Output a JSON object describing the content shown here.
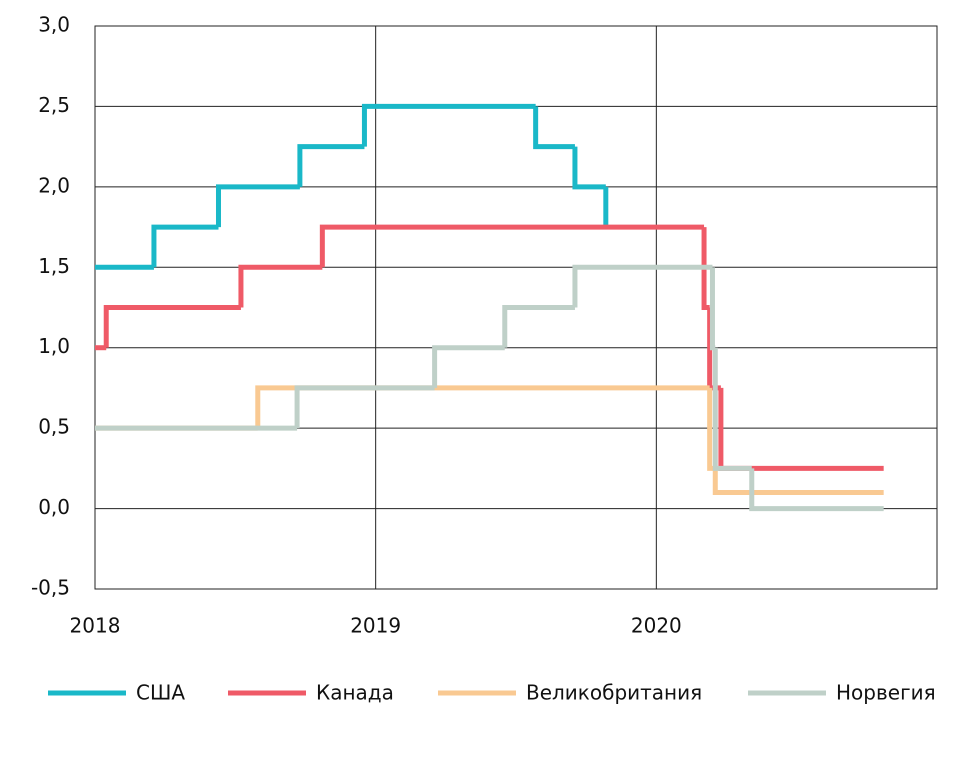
{
  "chart_data": {
    "type": "line",
    "drawstyle": "steps-post",
    "xlim": [
      2018,
      2021
    ],
    "xticks": [
      2018,
      2019,
      2020
    ],
    "ylim": [
      -0.5,
      3.0
    ],
    "yticks": [
      {
        "value": -0.5,
        "label": "-0,5"
      },
      {
        "value": 0,
        "label": "0,0"
      },
      {
        "value": 0.5,
        "label": "0,5"
      },
      {
        "value": 1,
        "label": "1,0"
      },
      {
        "value": 1.5,
        "label": "1,5"
      },
      {
        "value": 2,
        "label": "2,0"
      },
      {
        "value": 2.5,
        "label": "2,5"
      },
      {
        "value": 3,
        "label": "3,0"
      }
    ],
    "grid": true,
    "legend": "bottom",
    "series": [
      {
        "name": "США",
        "color": "#1ab8c8",
        "x": [
          2018,
          2018.21,
          2018.44,
          2018.73,
          2018.96,
          2019.57,
          2019.71,
          2019.82
        ],
        "values": [
          1.5,
          1.75,
          2.0,
          2.25,
          2.5,
          2.25,
          2.0,
          1.75
        ]
      },
      {
        "name": "Канада",
        "color": "#ef5a67",
        "x": [
          2018,
          2018.04,
          2018.52,
          2018.81,
          2020.17,
          2020.19,
          2020.23,
          2020.81
        ],
        "values": [
          1.0,
          1.25,
          1.5,
          1.75,
          1.25,
          0.75,
          0.25,
          0.25
        ]
      },
      {
        "name": "Великобритания",
        "color": "#f9c992",
        "x": [
          2018,
          2018.58,
          2020.19,
          2020.21,
          2020.81
        ],
        "values": [
          0.5,
          0.75,
          0.25,
          0.1,
          0.1
        ]
      },
      {
        "name": "Норвегия",
        "color": "#bfd0c8",
        "x": [
          2018,
          2018.72,
          2019.21,
          2019.46,
          2019.71,
          2020.2,
          2020.21,
          2020.34,
          2020.81
        ],
        "values": [
          0.5,
          0.75,
          1.0,
          1.25,
          1.5,
          1.0,
          0.25,
          0.0,
          0.0
        ]
      }
    ]
  }
}
